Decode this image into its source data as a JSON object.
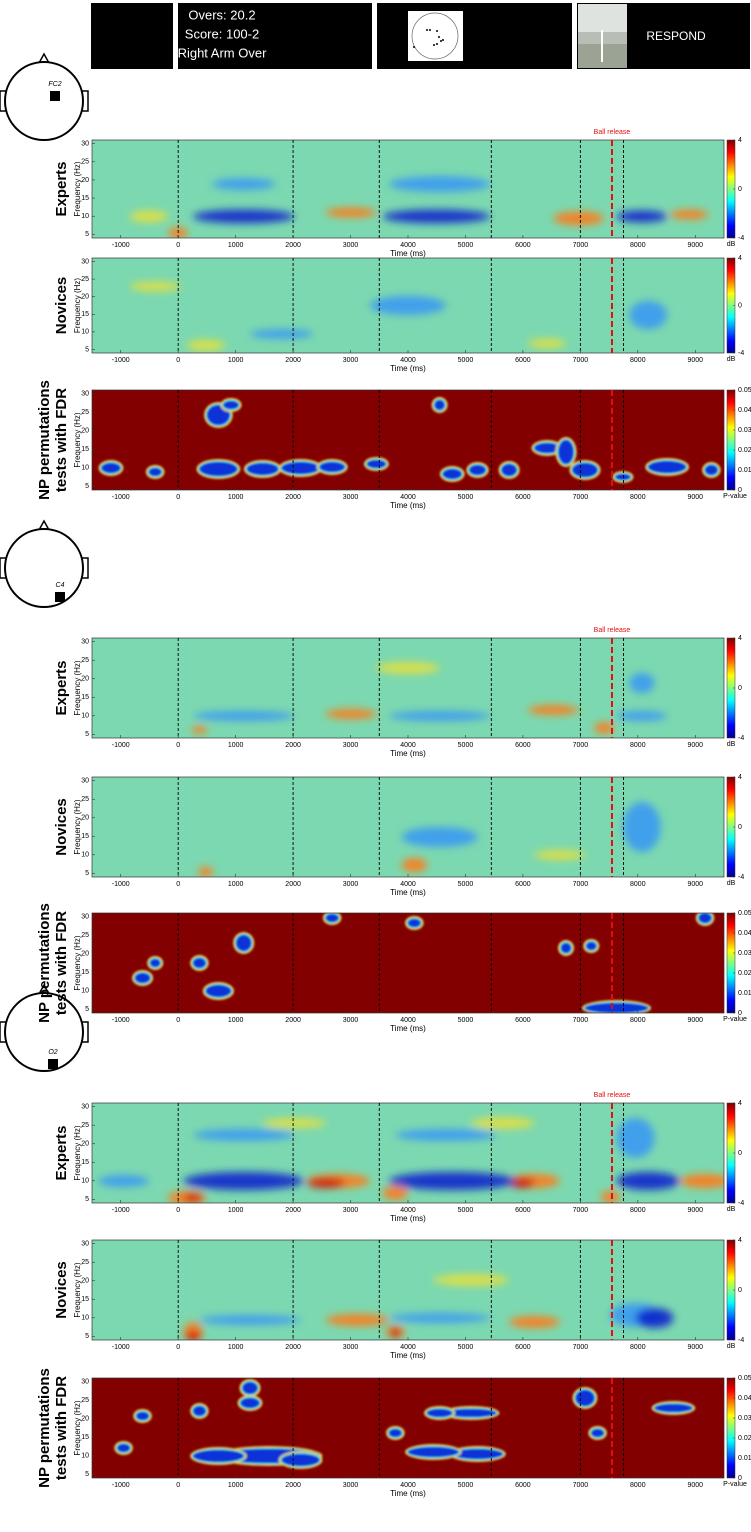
{
  "banner": {
    "lines": [
      "Overs: 20.2",
      "Score: 100-2",
      "Right Arm Over"
    ],
    "button": "RESPOND"
  },
  "electrodes": [
    "FC2",
    "C4",
    "O2"
  ],
  "chart_data": [
    {
      "type": "heatmap",
      "colormap": "jet",
      "row_label": [
        "Experts"
      ],
      "ylabel": "Frequency (Hz)",
      "xlabel": "Time (ms)",
      "xlim": [
        -1500,
        9500
      ],
      "xticks": [
        -1000,
        0,
        1000,
        2000,
        3000,
        4000,
        5000,
        6000,
        7000,
        8000,
        9000
      ],
      "ylim": [
        4,
        31
      ],
      "yticks": [
        5,
        10,
        15,
        20,
        25,
        30
      ],
      "clim": [
        -4,
        4
      ],
      "cticks": [
        -4,
        0,
        4
      ],
      "clabel": "dB",
      "event_lines": [
        0,
        2000,
        3500,
        5450,
        7000,
        7750
      ],
      "ball_release": 7550,
      "annotation": "Ball release"
    },
    {
      "type": "heatmap",
      "colormap": "jet",
      "row_label": [
        "Novices"
      ],
      "ylabel": "Frequency (Hz)",
      "xlabel": "Time (ms)",
      "xlim": [
        -1500,
        9500
      ],
      "xticks": [
        -1000,
        0,
        1000,
        2000,
        3000,
        4000,
        5000,
        6000,
        7000,
        8000,
        9000
      ],
      "ylim": [
        4,
        31
      ],
      "yticks": [
        5,
        10,
        15,
        20,
        25,
        30
      ],
      "clim": [
        -4,
        4
      ],
      "cticks": [
        -4,
        0,
        4
      ],
      "clabel": "dB",
      "event_lines": [
        0,
        2000,
        3500,
        5450,
        7000,
        7750
      ],
      "ball_release": 7550
    },
    {
      "type": "heatmap",
      "colormap": "jet",
      "row_label": [
        "NP permutations",
        "tests with FDR"
      ],
      "ylabel": "Frequency (Hz)",
      "xlabel": "Time (ms)",
      "xlim": [
        -1500,
        9500
      ],
      "xticks": [
        -1000,
        0,
        1000,
        2000,
        3000,
        4000,
        5000,
        6000,
        7000,
        8000,
        9000
      ],
      "ylim": [
        4,
        31
      ],
      "yticks": [
        5,
        10,
        15,
        20,
        25,
        30
      ],
      "clim": [
        0,
        0.05
      ],
      "cticks": [
        0,
        0.01,
        0.02,
        0.03,
        0.04,
        0.05
      ],
      "clabel": "P-value",
      "event_lines": [
        0,
        2000,
        3500,
        5450,
        7000,
        7750
      ],
      "ball_release": 7550
    },
    {
      "type": "heatmap",
      "colormap": "jet",
      "row_label": [
        "Experts"
      ],
      "ylabel": "Frequency (Hz)",
      "xlabel": "Time (ms)",
      "xlim": [
        -1500,
        9500
      ],
      "xticks": [
        -1000,
        0,
        1000,
        2000,
        3000,
        4000,
        5000,
        6000,
        7000,
        8000,
        9000
      ],
      "ylim": [
        4,
        31
      ],
      "yticks": [
        5,
        10,
        15,
        20,
        25,
        30
      ],
      "clim": [
        -4,
        4
      ],
      "cticks": [
        -4,
        0,
        4
      ],
      "clabel": "dB",
      "event_lines": [
        0,
        2000,
        3500,
        5450,
        7000,
        7750
      ],
      "ball_release": 7550,
      "annotation": "Ball release"
    },
    {
      "type": "heatmap",
      "colormap": "jet",
      "row_label": [
        "Novices"
      ],
      "ylabel": "Frequency (Hz)",
      "xlabel": "Time (ms)",
      "xlim": [
        -1500,
        9500
      ],
      "xticks": [
        -1000,
        0,
        1000,
        2000,
        3000,
        4000,
        5000,
        6000,
        7000,
        8000,
        9000
      ],
      "ylim": [
        4,
        31
      ],
      "yticks": [
        5,
        10,
        15,
        20,
        25,
        30
      ],
      "clim": [
        -4,
        4
      ],
      "cticks": [
        -4,
        0,
        4
      ],
      "clabel": "dB",
      "event_lines": [
        0,
        2000,
        3500,
        5450,
        7000,
        7750
      ],
      "ball_release": 7550
    },
    {
      "type": "heatmap",
      "colormap": "jet",
      "row_label": [
        "NP permutations",
        "tests with FDR"
      ],
      "ylabel": "Frequency (Hz)",
      "xlabel": "Time (ms)",
      "xlim": [
        -1500,
        9500
      ],
      "xticks": [
        -1000,
        0,
        1000,
        2000,
        3000,
        4000,
        5000,
        6000,
        7000,
        8000,
        9000
      ],
      "ylim": [
        4,
        31
      ],
      "yticks": [
        5,
        10,
        15,
        20,
        25,
        30
      ],
      "clim": [
        0,
        0.05
      ],
      "cticks": [
        0,
        0.01,
        0.02,
        0.03,
        0.04,
        0.05
      ],
      "clabel": "P-value",
      "event_lines": [
        0,
        2000,
        3500,
        5450,
        7000,
        7750
      ],
      "ball_release": 7550
    },
    {
      "type": "heatmap",
      "colormap": "jet",
      "row_label": [
        "Experts"
      ],
      "ylabel": "Frequency (Hz)",
      "xlabel": "Time (ms)",
      "xlim": [
        -1500,
        9500
      ],
      "xticks": [
        -1000,
        0,
        1000,
        2000,
        3000,
        4000,
        5000,
        6000,
        7000,
        8000,
        9000
      ],
      "ylim": [
        4,
        31
      ],
      "yticks": [
        5,
        10,
        15,
        20,
        25,
        30
      ],
      "clim": [
        -4,
        4
      ],
      "cticks": [
        -4,
        0,
        4
      ],
      "clabel": "dB",
      "event_lines": [
        0,
        2000,
        3500,
        5450,
        7000,
        7750
      ],
      "ball_release": 7550,
      "annotation": "Ball release"
    },
    {
      "type": "heatmap",
      "colormap": "jet",
      "row_label": [
        "Novices"
      ],
      "ylabel": "Frequency (Hz)",
      "xlabel": "Time (ms)",
      "xlim": [
        -1500,
        9500
      ],
      "xticks": [
        -1000,
        0,
        1000,
        2000,
        3000,
        4000,
        5000,
        6000,
        7000,
        8000,
        9000
      ],
      "ylim": [
        4,
        31
      ],
      "yticks": [
        5,
        10,
        15,
        20,
        25,
        30
      ],
      "clim": [
        -4,
        4
      ],
      "cticks": [
        -4,
        0,
        4
      ],
      "clabel": "dB",
      "event_lines": [
        0,
        2000,
        3500,
        5450,
        7000,
        7750
      ],
      "ball_release": 7550
    },
    {
      "type": "heatmap",
      "colormap": "jet",
      "row_label": [
        "NP permutations",
        "tests with FDR"
      ],
      "ylabel": "Frequency (Hz)",
      "xlabel": "Time (ms)",
      "xlim": [
        -1500,
        9500
      ],
      "xticks": [
        -1000,
        0,
        1000,
        2000,
        3000,
        4000,
        5000,
        6000,
        7000,
        8000,
        9000
      ],
      "ylim": [
        4,
        31
      ],
      "yticks": [
        5,
        10,
        15,
        20,
        25,
        30
      ],
      "clim": [
        0,
        0.05
      ],
      "cticks": [
        0,
        0.01,
        0.02,
        0.03,
        0.04,
        0.05
      ],
      "clabel": "P-value",
      "event_lines": [
        0,
        2000,
        3500,
        5450,
        7000,
        7750
      ],
      "ball_release": 7550
    }
  ]
}
